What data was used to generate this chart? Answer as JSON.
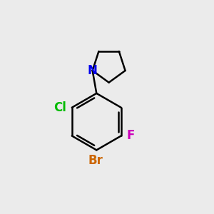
{
  "background_color": "#ebebeb",
  "bond_color": "#000000",
  "bond_width": 1.8,
  "atom_colors": {
    "Cl": "#00bb00",
    "Br": "#cc6600",
    "F": "#cc00bb",
    "N": "#0000ee"
  },
  "atom_fontsizes": {
    "Cl": 12,
    "Br": 12,
    "F": 12,
    "N": 12
  },
  "figsize": [
    3.0,
    3.0
  ],
  "dpi": 100
}
